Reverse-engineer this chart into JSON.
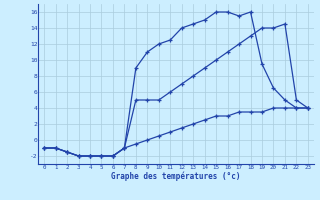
{
  "title": "Graphe des températures (°c)",
  "background_color": "#cceeff",
  "grid_color": "#aaccdd",
  "line_color": "#2244aa",
  "xlim": [
    -0.5,
    23.5
  ],
  "ylim": [
    -3,
    17
  ],
  "xticks": [
    0,
    1,
    2,
    3,
    4,
    5,
    6,
    7,
    8,
    9,
    10,
    11,
    12,
    13,
    14,
    15,
    16,
    17,
    18,
    19,
    20,
    21,
    22,
    23
  ],
  "yticks": [
    -2,
    0,
    2,
    4,
    6,
    8,
    10,
    12,
    14,
    16
  ],
  "line1_x": [
    0,
    1,
    2,
    3,
    4,
    5,
    6,
    7,
    8,
    9,
    10,
    11,
    12,
    13,
    14,
    15,
    16,
    17,
    18,
    19,
    20,
    21,
    22,
    23
  ],
  "line1_y": [
    -1,
    -1,
    -1.5,
    -2,
    -2,
    -2,
    -2,
    -1,
    9,
    11,
    12,
    12.5,
    14,
    14.5,
    15,
    16,
    16,
    15.5,
    16,
    9.5,
    6.5,
    5,
    4,
    4
  ],
  "line2_x": [
    0,
    1,
    2,
    3,
    4,
    5,
    6,
    7,
    8,
    9,
    10,
    11,
    12,
    13,
    14,
    15,
    16,
    17,
    18,
    19,
    20,
    21,
    22,
    23
  ],
  "line2_y": [
    -1,
    -1,
    -1.5,
    -2,
    -2,
    -2,
    -2,
    -1,
    5,
    5,
    5,
    6,
    7,
    8,
    9,
    10,
    11,
    12,
    13,
    14,
    14,
    14.5,
    5,
    4
  ],
  "line3_x": [
    0,
    1,
    2,
    3,
    4,
    5,
    6,
    7,
    8,
    9,
    10,
    11,
    12,
    13,
    14,
    15,
    16,
    17,
    18,
    19,
    20,
    21,
    22,
    23
  ],
  "line3_y": [
    -1,
    -1,
    -1.5,
    -2,
    -2,
    -2,
    -2,
    -1,
    -0.5,
    0,
    0.5,
    1,
    1.5,
    2,
    2.5,
    3,
    3,
    3.5,
    3.5,
    3.5,
    4,
    4,
    4,
    4
  ]
}
